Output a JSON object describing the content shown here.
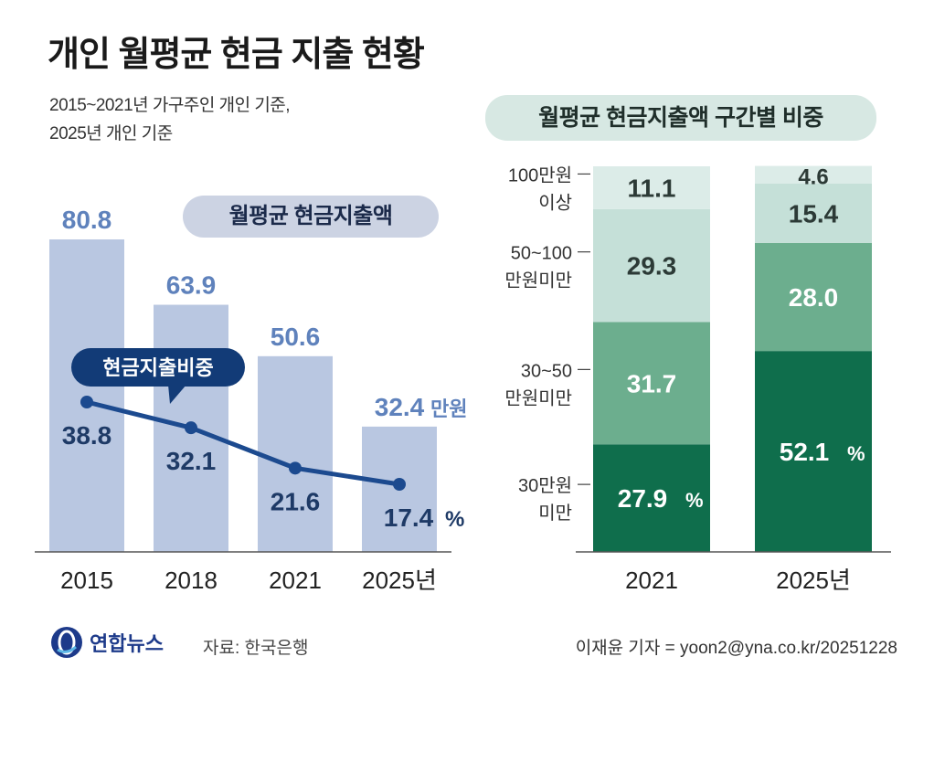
{
  "title": "개인 월평균 현금 지출 현황",
  "subtitle_lines": [
    "2015~2021년 가구주인 개인 기준,",
    "2025년 개인 기준"
  ],
  "colors": {
    "bar": "#b9c7e1",
    "bar_label": "#5f82bc",
    "line": "#1c4a8f",
    "line_label": "#1e3a66",
    "stack_dark": "#0f6e4c",
    "stack_mid": "#6cae8e",
    "stack_light": "#c5e0d8",
    "stack_lightest": "#dcece8"
  },
  "chart_data": [
    {
      "type": "bar",
      "title": "월평균 현금지출액",
      "categories": [
        "2015",
        "2018",
        "2021",
        "2025년"
      ],
      "values": [
        80.8,
        63.9,
        50.6,
        32.4
      ],
      "value_labels": [
        "80.8",
        "63.9",
        "50.6",
        "32.4"
      ],
      "unit": "만원",
      "ylim": [
        0,
        80.8
      ],
      "line_series": {
        "name": "현금지출비중",
        "values": [
          38.8,
          32.1,
          21.6,
          17.4
        ],
        "value_labels": [
          "38.8",
          "32.1",
          "21.6",
          "17.4"
        ],
        "unit": "%"
      }
    },
    {
      "type": "bar",
      "stacked": true,
      "title": "월평균 현금지출액 구간별 비중",
      "categories": [
        "2021",
        "2025년"
      ],
      "segment_labels": [
        [
          "30만원",
          "미만"
        ],
        [
          "30~50",
          "만원미만"
        ],
        [
          "50~100",
          "만원미만"
        ],
        [
          "100만원",
          "이상"
        ]
      ],
      "series": [
        {
          "name": "30만원 미만",
          "values": [
            27.9,
            52.1
          ],
          "value_labels": [
            "27.9",
            "52.1"
          ]
        },
        {
          "name": "30~50 만원미만",
          "values": [
            31.7,
            28.0
          ],
          "value_labels": [
            "31.7",
            "28.0"
          ]
        },
        {
          "name": "50~100 만원미만",
          "values": [
            29.3,
            15.4
          ],
          "value_labels": [
            "29.3",
            "15.4"
          ]
        },
        {
          "name": "100만원 이상",
          "values": [
            11.1,
            4.6
          ],
          "value_labels": [
            "11.1",
            "4.6"
          ]
        }
      ],
      "unit": "%",
      "ylim": [
        0,
        100
      ]
    }
  ],
  "footer": {
    "logo": "연합뉴스",
    "source": "자료: 한국은행",
    "credit": "이재윤 기자 = yoon2@yna.co.kr/20251228"
  }
}
